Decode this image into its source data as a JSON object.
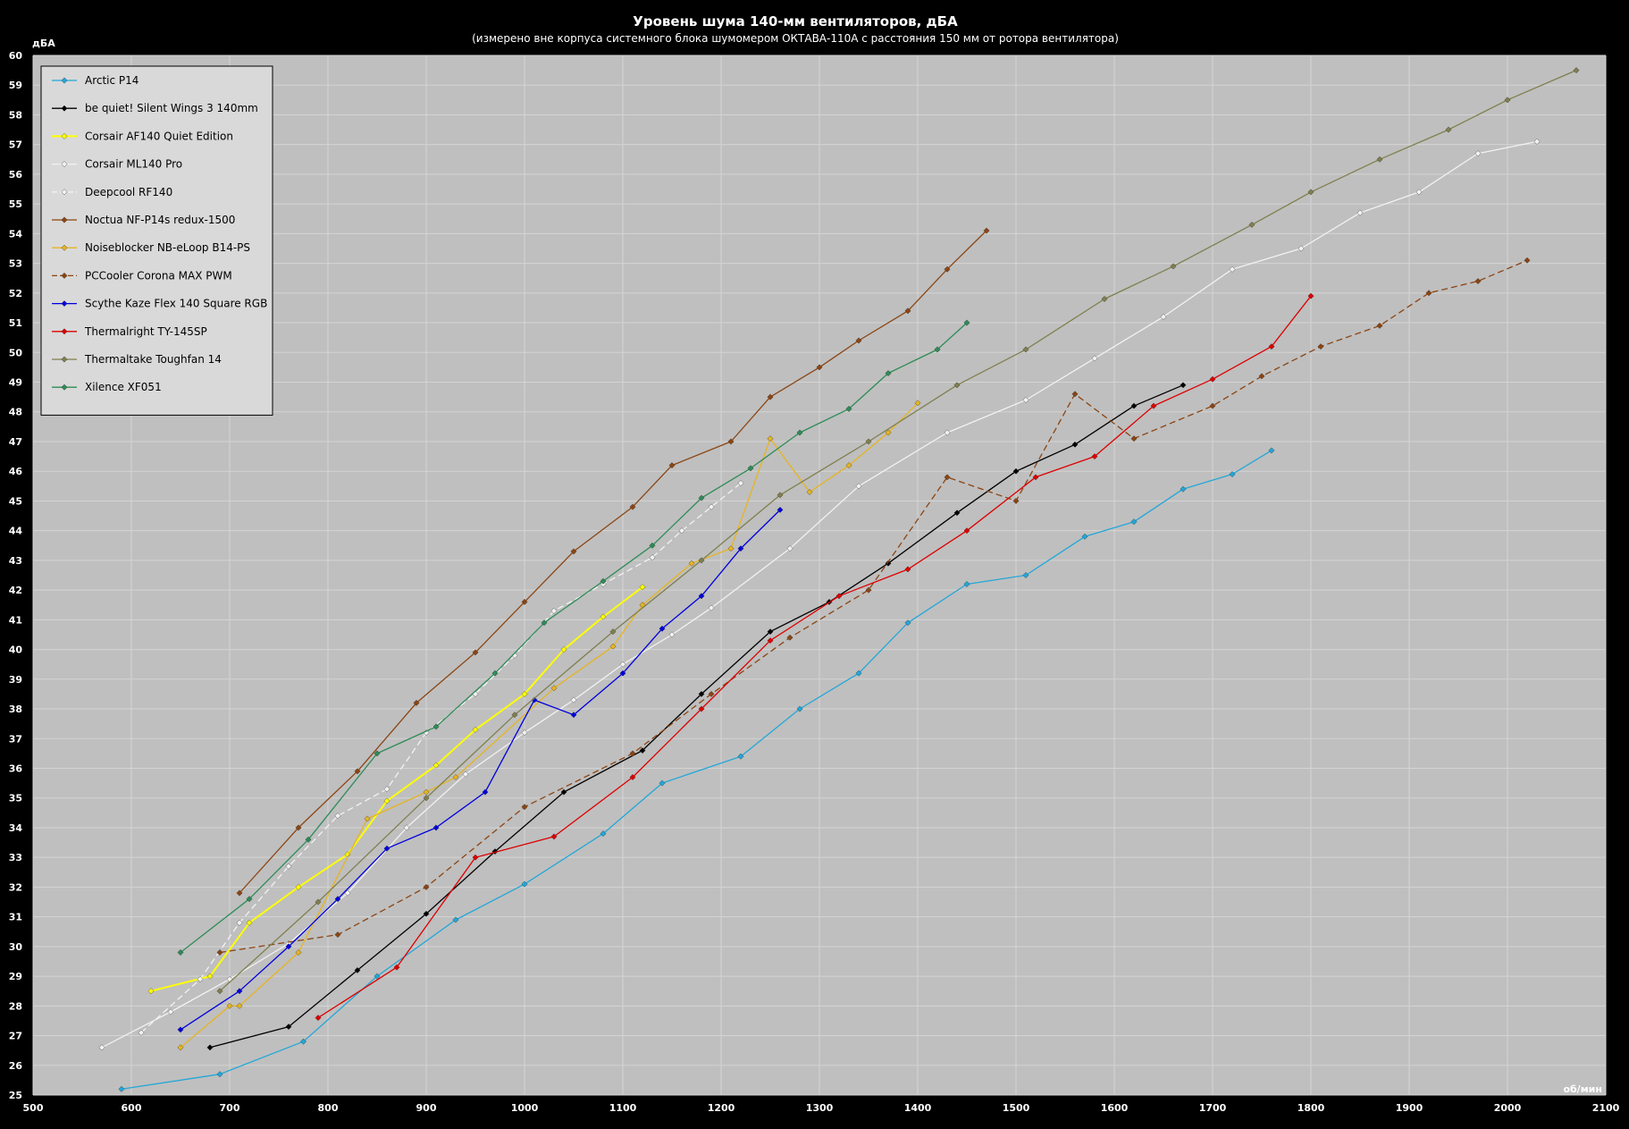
{
  "chart_data": {
    "type": "line",
    "title": "Уровень шума 140-мм вентиляторов, дБА",
    "subtitle": "(измерено вне корпуса системного блока шумомером ОКТАВА-110А с расстояния 150 мм от ротора вентилятора)",
    "xlabel": "об/мин",
    "ylabel": "дБА",
    "xlim": [
      500,
      2100
    ],
    "ylim": [
      25,
      60
    ],
    "xticks": [
      500,
      600,
      700,
      800,
      900,
      1000,
      1100,
      1200,
      1300,
      1400,
      1500,
      1600,
      1700,
      1800,
      1900,
      2000,
      2100
    ],
    "yticks": [
      25,
      26,
      27,
      28,
      29,
      30,
      31,
      32,
      33,
      34,
      35,
      36,
      37,
      38,
      39,
      40,
      41,
      42,
      43,
      44,
      45,
      46,
      47,
      48,
      49,
      50,
      51,
      52,
      53,
      54,
      55,
      56,
      57,
      58,
      59,
      60
    ],
    "grid": true,
    "legend_position": "top-left",
    "colors": {
      "background": "#000000",
      "plot_area": "#bfbfbf",
      "grid": "#d4d4d4",
      "text": "#ffffff",
      "legend_bg": "#d9d9d9"
    },
    "series": [
      {
        "name": "Arctic P14",
        "color": "#22a7d8",
        "dashed": false,
        "points": [
          [
            590,
            25.2
          ],
          [
            690,
            25.7
          ],
          [
            775,
            26.8
          ],
          [
            850,
            29.0
          ],
          [
            930,
            30.9
          ],
          [
            1000,
            32.1
          ],
          [
            1080,
            33.8
          ],
          [
            1140,
            35.5
          ],
          [
            1220,
            36.4
          ],
          [
            1280,
            38.0
          ],
          [
            1340,
            39.2
          ],
          [
            1390,
            40.9
          ],
          [
            1450,
            42.2
          ],
          [
            1510,
            42.5
          ],
          [
            1570,
            43.8
          ],
          [
            1620,
            44.3
          ],
          [
            1670,
            45.4
          ],
          [
            1720,
            45.9
          ],
          [
            1760,
            46.7
          ]
        ]
      },
      {
        "name": "be quiet! Silent Wings 3 140mm",
        "color": "#000000",
        "dashed": false,
        "points": [
          [
            680,
            26.6
          ],
          [
            760,
            27.3
          ],
          [
            830,
            29.2
          ],
          [
            900,
            31.1
          ],
          [
            970,
            33.2
          ],
          [
            1040,
            35.2
          ],
          [
            1120,
            36.6
          ],
          [
            1180,
            38.5
          ],
          [
            1250,
            40.6
          ],
          [
            1310,
            41.6
          ],
          [
            1370,
            42.9
          ],
          [
            1440,
            44.6
          ],
          [
            1500,
            46.0
          ],
          [
            1560,
            46.9
          ],
          [
            1620,
            48.2
          ],
          [
            1670,
            48.9
          ]
        ]
      },
      {
        "name": "Corsair AF140 Quiet Edition",
        "color": "#ffff00",
        "dashed": false,
        "points": [
          [
            620,
            28.5
          ],
          [
            680,
            29.0
          ],
          [
            720,
            30.8
          ],
          [
            770,
            32.0
          ],
          [
            820,
            33.1
          ],
          [
            860,
            34.9
          ],
          [
            910,
            36.1
          ],
          [
            950,
            37.3
          ],
          [
            1000,
            38.5
          ],
          [
            1040,
            40.0
          ],
          [
            1080,
            41.1
          ],
          [
            1120,
            42.1
          ]
        ]
      },
      {
        "name": "Corsair ML140 Pro",
        "color": "#f2f2f2",
        "dashed": false,
        "points": [
          [
            570,
            26.6
          ],
          [
            640,
            27.8
          ],
          [
            700,
            28.9
          ],
          [
            760,
            30.1
          ],
          [
            820,
            31.8
          ],
          [
            880,
            34.0
          ],
          [
            940,
            35.8
          ],
          [
            1000,
            37.2
          ],
          [
            1050,
            38.3
          ],
          [
            1100,
            39.5
          ],
          [
            1150,
            40.5
          ],
          [
            1190,
            41.4
          ],
          [
            1270,
            43.4
          ],
          [
            1340,
            45.5
          ],
          [
            1430,
            47.3
          ],
          [
            1510,
            48.4
          ],
          [
            1580,
            49.8
          ],
          [
            1650,
            51.2
          ],
          [
            1720,
            52.8
          ],
          [
            1790,
            53.5
          ],
          [
            1850,
            54.7
          ],
          [
            1910,
            55.4
          ],
          [
            1970,
            56.7
          ],
          [
            2030,
            57.1
          ]
        ]
      },
      {
        "name": "Deepcool RF140",
        "color": "#f2f2f2",
        "dashed": true,
        "points": [
          [
            610,
            27.1
          ],
          [
            670,
            28.9
          ],
          [
            710,
            30.8
          ],
          [
            760,
            32.7
          ],
          [
            810,
            34.4
          ],
          [
            860,
            35.3
          ],
          [
            900,
            37.2
          ],
          [
            950,
            38.5
          ],
          [
            990,
            39.8
          ],
          [
            1030,
            41.3
          ],
          [
            1080,
            42.2
          ],
          [
            1130,
            43.1
          ],
          [
            1160,
            44.0
          ],
          [
            1190,
            44.8
          ],
          [
            1220,
            45.6
          ]
        ]
      },
      {
        "name": "Noctua NF-P14s redux-1500",
        "color": "#8b4513",
        "dashed": false,
        "points": [
          [
            710,
            31.8
          ],
          [
            770,
            34.0
          ],
          [
            830,
            35.9
          ],
          [
            890,
            38.2
          ],
          [
            950,
            39.9
          ],
          [
            1000,
            41.6
          ],
          [
            1050,
            43.3
          ],
          [
            1110,
            44.8
          ],
          [
            1150,
            46.2
          ],
          [
            1210,
            47.0
          ],
          [
            1250,
            48.5
          ],
          [
            1300,
            49.5
          ],
          [
            1340,
            50.4
          ],
          [
            1390,
            51.4
          ],
          [
            1430,
            52.8
          ],
          [
            1470,
            54.1
          ]
        ]
      },
      {
        "name": "Noiseblocker NB-eLoop B14-PS",
        "color": "#e6b422",
        "dashed": false,
        "points": [
          [
            650,
            26.6
          ],
          [
            700,
            28.0
          ],
          [
            710,
            28.0
          ],
          [
            770,
            29.8
          ],
          [
            840,
            34.3
          ],
          [
            900,
            35.2
          ],
          [
            930,
            35.7
          ],
          [
            1030,
            38.7
          ],
          [
            1090,
            40.1
          ],
          [
            1120,
            41.5
          ],
          [
            1170,
            42.9
          ],
          [
            1210,
            43.4
          ],
          [
            1250,
            47.1
          ],
          [
            1290,
            45.3
          ],
          [
            1330,
            46.2
          ],
          [
            1370,
            47.3
          ],
          [
            1400,
            48.3
          ]
        ]
      },
      {
        "name": "PCCooler Corona MAX PWM",
        "color": "#8b4513",
        "dashed": true,
        "points": [
          [
            690,
            29.8
          ],
          [
            810,
            30.4
          ],
          [
            900,
            32.0
          ],
          [
            1000,
            34.7
          ],
          [
            1110,
            36.5
          ],
          [
            1190,
            38.5
          ],
          [
            1270,
            40.4
          ],
          [
            1350,
            42.0
          ],
          [
            1430,
            45.8
          ],
          [
            1500,
            45.0
          ],
          [
            1560,
            48.6
          ],
          [
            1620,
            47.1
          ],
          [
            1700,
            48.2
          ],
          [
            1750,
            49.2
          ],
          [
            1810,
            50.2
          ],
          [
            1870,
            50.9
          ],
          [
            1920,
            52.0
          ],
          [
            1970,
            52.4
          ],
          [
            2020,
            53.1
          ]
        ]
      },
      {
        "name": "Scythe Kaze Flex 140 Square RGB",
        "color": "#0000dd",
        "dashed": false,
        "points": [
          [
            650,
            27.2
          ],
          [
            710,
            28.5
          ],
          [
            760,
            30.0
          ],
          [
            810,
            31.6
          ],
          [
            860,
            33.3
          ],
          [
            910,
            34.0
          ],
          [
            960,
            35.2
          ],
          [
            1010,
            38.3
          ],
          [
            1050,
            37.8
          ],
          [
            1100,
            39.2
          ],
          [
            1140,
            40.7
          ],
          [
            1180,
            41.8
          ],
          [
            1220,
            43.4
          ],
          [
            1260,
            44.7
          ]
        ]
      },
      {
        "name": "Thermalright TY-145SP",
        "color": "#dd0000",
        "dashed": false,
        "points": [
          [
            790,
            27.6
          ],
          [
            870,
            29.3
          ],
          [
            950,
            33.0
          ],
          [
            1030,
            33.7
          ],
          [
            1110,
            35.7
          ],
          [
            1180,
            38.0
          ],
          [
            1250,
            40.3
          ],
          [
            1320,
            41.8
          ],
          [
            1390,
            42.7
          ],
          [
            1450,
            44.0
          ],
          [
            1520,
            45.8
          ],
          [
            1580,
            46.5
          ],
          [
            1640,
            48.2
          ],
          [
            1700,
            49.1
          ],
          [
            1760,
            50.2
          ],
          [
            1800,
            51.9
          ]
        ]
      },
      {
        "name": "Thermaltake Toughfan 14",
        "color": "#7f7f4f",
        "dashed": false,
        "points": [
          [
            690,
            28.5
          ],
          [
            790,
            31.5
          ],
          [
            900,
            35.0
          ],
          [
            990,
            37.8
          ],
          [
            1090,
            40.6
          ],
          [
            1180,
            43.0
          ],
          [
            1260,
            45.2
          ],
          [
            1350,
            47.0
          ],
          [
            1440,
            48.9
          ],
          [
            1510,
            50.1
          ],
          [
            1590,
            51.8
          ],
          [
            1660,
            52.9
          ],
          [
            1740,
            54.3
          ],
          [
            1800,
            55.4
          ],
          [
            1870,
            56.5
          ],
          [
            1940,
            57.5
          ],
          [
            2000,
            58.5
          ],
          [
            2070,
            59.5
          ]
        ]
      },
      {
        "name": "Xilence XF051",
        "color": "#2e8b57",
        "dashed": false,
        "points": [
          [
            650,
            29.8
          ],
          [
            720,
            31.6
          ],
          [
            780,
            33.6
          ],
          [
            850,
            36.5
          ],
          [
            910,
            37.4
          ],
          [
            970,
            39.2
          ],
          [
            1020,
            40.9
          ],
          [
            1080,
            42.3
          ],
          [
            1130,
            43.5
          ],
          [
            1180,
            45.1
          ],
          [
            1230,
            46.1
          ],
          [
            1280,
            47.3
          ],
          [
            1330,
            48.1
          ],
          [
            1370,
            49.3
          ],
          [
            1420,
            50.1
          ],
          [
            1450,
            51.0
          ]
        ]
      }
    ]
  }
}
